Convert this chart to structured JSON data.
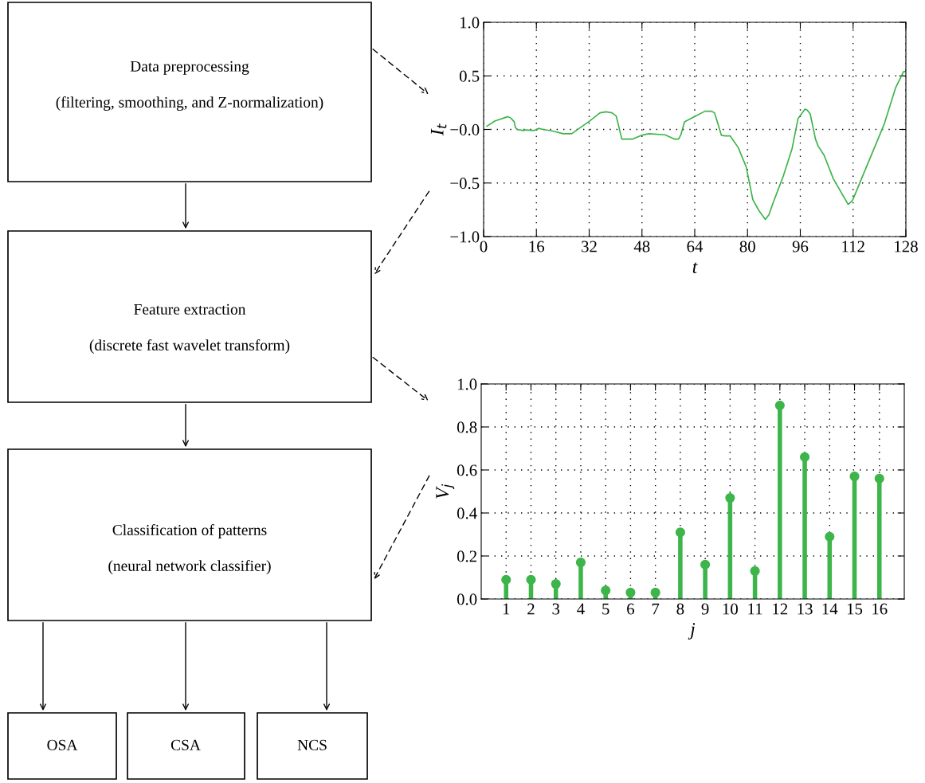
{
  "chart_data": [
    {
      "type": "other",
      "annotations": [
        "Data preprocessing",
        "(filtering, smoothing, and Z-normalization)",
        "Feature extraction",
        "(discrete fast wavelet transform)",
        "Classification of patterns",
        "(neural network classifier)",
        "OSA",
        "CSA",
        "NCS"
      ]
    },
    {
      "type": "line",
      "xlabel": "t",
      "ylabel": "I$_{t}$",
      "color": "#3cb44a",
      "grid": true,
      "x": [
        1,
        3.5,
        7.4,
        8.3,
        9.3,
        9.6,
        10.2,
        12,
        12.7,
        15.3,
        16.7,
        18,
        20.9,
        24.1,
        26.7,
        32,
        35.3,
        37.1,
        38.9,
        40.2,
        41.9,
        45.2,
        47.8,
        50.1,
        55,
        57.8,
        59.1,
        59.8,
        60.9,
        64,
        67.1,
        69.1,
        70,
        72.1,
        73.3,
        74.7,
        77.2,
        79.6,
        81.6,
        83.5,
        85.4,
        86.5,
        87.7,
        90.9,
        93.5,
        95.3,
        97.4,
        98.1,
        99,
        100.6,
        101.4,
        103.2,
        106,
        110.5,
        111.8,
        121.5,
        124.9,
        127.3,
        128
      ],
      "values": [
        0.03,
        0.08,
        0.12,
        0.105,
        0.07,
        0.02,
        0.0,
        -0.01,
        -0.005,
        -0.01,
        0.01,
        0.0,
        -0.015,
        -0.04,
        -0.04,
        0.075,
        0.155,
        0.165,
        0.155,
        0.125,
        -0.09,
        -0.09,
        -0.055,
        -0.04,
        -0.05,
        -0.09,
        -0.09,
        -0.05,
        0.07,
        0.12,
        0.17,
        0.17,
        0.155,
        -0.055,
        -0.06,
        -0.06,
        -0.17,
        -0.35,
        -0.655,
        -0.76,
        -0.84,
        -0.795,
        -0.69,
        -0.43,
        -0.18,
        0.1,
        0.19,
        0.18,
        0.145,
        -0.09,
        -0.155,
        -0.24,
        -0.46,
        -0.7,
        -0.665,
        0.055,
        0.39,
        0.54,
        0.54
      ],
      "xlim": [
        0,
        128
      ],
      "xticks": [
        0,
        16,
        32,
        48,
        64,
        80,
        96,
        112,
        128
      ],
      "ylim": [
        -1,
        1
      ],
      "yticks": [
        {
          "value": -1,
          "label": "−1.0"
        },
        {
          "value": -0.5,
          "label": "−0.5"
        },
        {
          "value": 0,
          "label": "−0.0"
        },
        {
          "value": 0.5,
          "label": "0.5"
        },
        {
          "value": 1,
          "label": "1.0"
        }
      ]
    },
    {
      "type": "lollipop",
      "xlabel": "j",
      "ylabel": "V$_{j}$",
      "color": "#3db54a",
      "grid": true,
      "marker": "circle",
      "categories": [
        "1",
        "2",
        "3",
        "4",
        "5",
        "6",
        "7",
        "8",
        "9",
        "10",
        "11",
        "12",
        "13",
        "14",
        "15",
        "16"
      ],
      "values": [
        0.09,
        0.09,
        0.07,
        0.17,
        0.04,
        0.03,
        0.03,
        0.31,
        0.16,
        0.47,
        0.13,
        0.9,
        0.66,
        0.29,
        0.57,
        0.56
      ],
      "ylim": [
        0,
        1
      ],
      "yticks": [
        {
          "value": 0,
          "label": "0.0"
        },
        {
          "value": 0.2,
          "label": "0.2"
        },
        {
          "value": 0.4,
          "label": "0.4"
        },
        {
          "value": 0.6,
          "label": "0.6"
        },
        {
          "value": 0.8,
          "label": "0.8"
        },
        {
          "value": 1,
          "label": "1.0"
        }
      ]
    }
  ]
}
